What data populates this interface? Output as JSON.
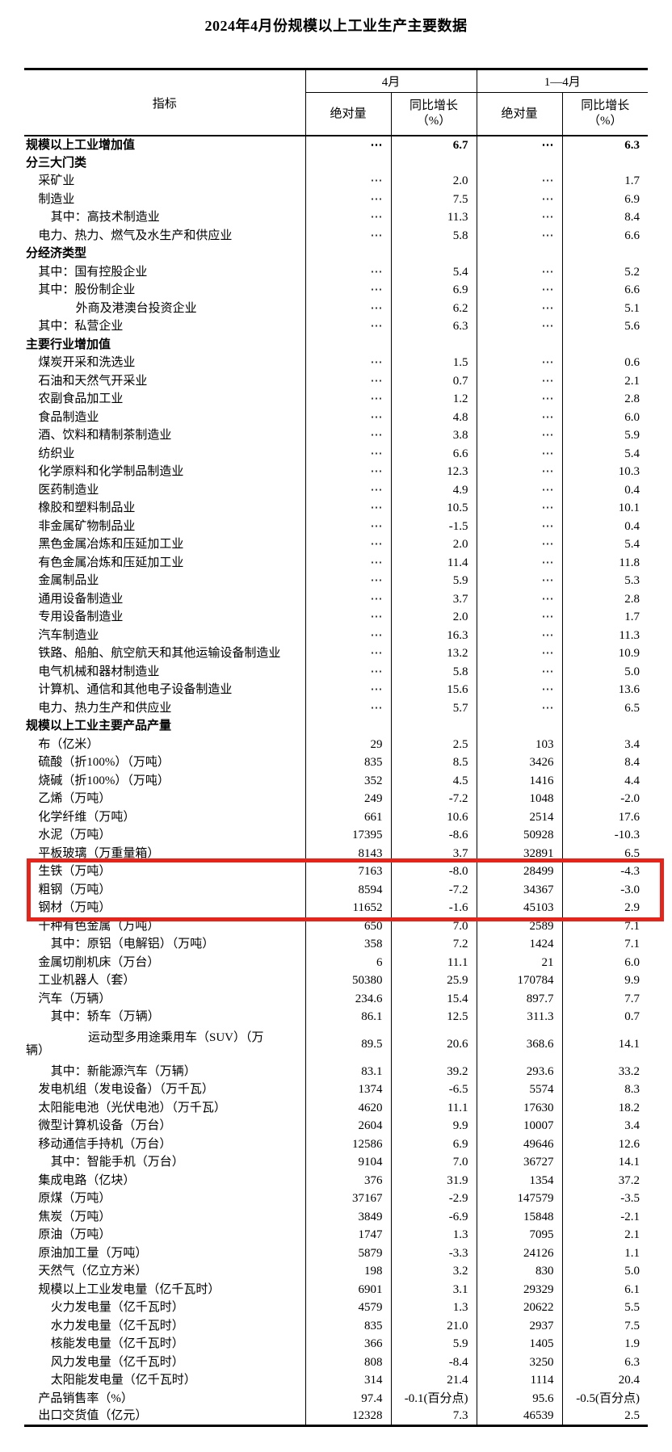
{
  "title": "2024年4月份规模以上工业生产主要数据",
  "table": {
    "highlight_color": "#e82319",
    "header": {
      "indicator": "指标",
      "groups": [
        {
          "label": "4月"
        },
        {
          "label": "1—4月"
        }
      ],
      "subheaders": [
        {
          "line1": "绝对量",
          "line2": ""
        },
        {
          "line1": "同比增长",
          "line2": "（%）"
        },
        {
          "line1": "绝对量",
          "line2": ""
        },
        {
          "line1": "同比增长",
          "line2": "（%）"
        }
      ]
    },
    "rows": [
      {
        "label": "规模以上工业增加值",
        "indent": 0,
        "bold": true,
        "values": [
          "⋯",
          "6.7",
          "⋯",
          "6.3"
        ]
      },
      {
        "label": "分三大门类",
        "indent": 0,
        "bold": true,
        "values": [
          "",
          "",
          "",
          ""
        ]
      },
      {
        "label": "采矿业",
        "indent": 1,
        "values": [
          "⋯",
          "2.0",
          "⋯",
          "1.7"
        ]
      },
      {
        "label": "制造业",
        "indent": 1,
        "values": [
          "⋯",
          "7.5",
          "⋯",
          "6.9"
        ]
      },
      {
        "label": "其中：高技术制造业",
        "indent": 2,
        "values": [
          "⋯",
          "11.3",
          "⋯",
          "8.4"
        ]
      },
      {
        "label": "电力、热力、燃气及水生产和供应业",
        "indent": 1,
        "values": [
          "⋯",
          "5.8",
          "⋯",
          "6.6"
        ]
      },
      {
        "label": "分经济类型",
        "indent": 0,
        "bold": true,
        "values": [
          "",
          "",
          "",
          ""
        ]
      },
      {
        "label": "其中：国有控股企业",
        "indent": 1,
        "values": [
          "⋯",
          "5.4",
          "⋯",
          "5.2"
        ]
      },
      {
        "label": "其中：股份制企业",
        "indent": 1,
        "values": [
          "⋯",
          "6.9",
          "⋯",
          "6.6"
        ]
      },
      {
        "label": "外商及港澳台投资企业",
        "indent": 4,
        "values": [
          "⋯",
          "6.2",
          "⋯",
          "5.1"
        ]
      },
      {
        "label": "其中：私营企业",
        "indent": 1,
        "values": [
          "⋯",
          "6.3",
          "⋯",
          "5.6"
        ]
      },
      {
        "label": "主要行业增加值",
        "indent": 0,
        "bold": true,
        "values": [
          "",
          "",
          "",
          ""
        ]
      },
      {
        "label": "煤炭开采和洗选业",
        "indent": 1,
        "values": [
          "⋯",
          "1.5",
          "⋯",
          "0.6"
        ]
      },
      {
        "label": "石油和天然气开采业",
        "indent": 1,
        "values": [
          "⋯",
          "0.7",
          "⋯",
          "2.1"
        ]
      },
      {
        "label": "农副食品加工业",
        "indent": 1,
        "values": [
          "⋯",
          "1.2",
          "⋯",
          "2.8"
        ]
      },
      {
        "label": "食品制造业",
        "indent": 1,
        "values": [
          "⋯",
          "4.8",
          "⋯",
          "6.0"
        ]
      },
      {
        "label": "酒、饮料和精制茶制造业",
        "indent": 1,
        "values": [
          "⋯",
          "3.8",
          "⋯",
          "5.9"
        ]
      },
      {
        "label": "纺织业",
        "indent": 1,
        "values": [
          "⋯",
          "6.6",
          "⋯",
          "5.4"
        ]
      },
      {
        "label": "化学原料和化学制品制造业",
        "indent": 1,
        "values": [
          "⋯",
          "12.3",
          "⋯",
          "10.3"
        ]
      },
      {
        "label": "医药制造业",
        "indent": 1,
        "values": [
          "⋯",
          "4.9",
          "⋯",
          "0.4"
        ]
      },
      {
        "label": "橡胶和塑料制品业",
        "indent": 1,
        "values": [
          "⋯",
          "10.5",
          "⋯",
          "10.1"
        ]
      },
      {
        "label": "非金属矿物制品业",
        "indent": 1,
        "values": [
          "⋯",
          "-1.5",
          "⋯",
          "0.4"
        ]
      },
      {
        "label": "黑色金属冶炼和压延加工业",
        "indent": 1,
        "values": [
          "⋯",
          "2.0",
          "⋯",
          "5.4"
        ]
      },
      {
        "label": "有色金属冶炼和压延加工业",
        "indent": 1,
        "values": [
          "⋯",
          "11.4",
          "⋯",
          "11.8"
        ]
      },
      {
        "label": "金属制品业",
        "indent": 1,
        "values": [
          "⋯",
          "5.9",
          "⋯",
          "5.3"
        ]
      },
      {
        "label": "通用设备制造业",
        "indent": 1,
        "values": [
          "⋯",
          "3.7",
          "⋯",
          "2.8"
        ]
      },
      {
        "label": "专用设备制造业",
        "indent": 1,
        "values": [
          "⋯",
          "2.0",
          "⋯",
          "1.7"
        ]
      },
      {
        "label": "汽车制造业",
        "indent": 1,
        "values": [
          "⋯",
          "16.3",
          "⋯",
          "11.3"
        ]
      },
      {
        "label": "铁路、船舶、航空航天和其他运输设备制造业",
        "indent": 1,
        "values": [
          "⋯",
          "13.2",
          "⋯",
          "10.9"
        ]
      },
      {
        "label": "电气机械和器材制造业",
        "indent": 1,
        "values": [
          "⋯",
          "5.8",
          "⋯",
          "5.0"
        ]
      },
      {
        "label": "计算机、通信和其他电子设备制造业",
        "indent": 1,
        "values": [
          "⋯",
          "15.6",
          "⋯",
          "13.6"
        ]
      },
      {
        "label": "电力、热力生产和供应业",
        "indent": 1,
        "values": [
          "⋯",
          "5.7",
          "⋯",
          "6.5"
        ]
      },
      {
        "label": "规模以上工业主要产品产量",
        "indent": 0,
        "bold": true,
        "values": [
          "",
          "",
          "",
          ""
        ]
      },
      {
        "label": "布（亿米）",
        "indent": 1,
        "values": [
          "29",
          "2.5",
          "103",
          "3.4"
        ]
      },
      {
        "label": "硫酸（折100%）（万吨）",
        "indent": 1,
        "values": [
          "835",
          "8.5",
          "3426",
          "8.4"
        ]
      },
      {
        "label": "烧碱（折100%）（万吨）",
        "indent": 1,
        "values": [
          "352",
          "4.5",
          "1416",
          "4.4"
        ]
      },
      {
        "label": "乙烯（万吨）",
        "indent": 1,
        "values": [
          "249",
          "-7.2",
          "1048",
          "-2.0"
        ]
      },
      {
        "label": "化学纤维（万吨）",
        "indent": 1,
        "values": [
          "661",
          "10.6",
          "2514",
          "17.6"
        ]
      },
      {
        "label": "水泥（万吨）",
        "indent": 1,
        "values": [
          "17395",
          "-8.6",
          "50928",
          "-10.3"
        ]
      },
      {
        "label": "平板玻璃（万重量箱）",
        "indent": 1,
        "values": [
          "8143",
          "3.7",
          "32891",
          "6.5"
        ]
      },
      {
        "label": "生铁（万吨）",
        "indent": 1,
        "highlight": true,
        "values": [
          "7163",
          "-8.0",
          "28499",
          "-4.3"
        ]
      },
      {
        "label": "粗钢（万吨）",
        "indent": 1,
        "highlight": true,
        "values": [
          "8594",
          "-7.2",
          "34367",
          "-3.0"
        ]
      },
      {
        "label": "钢材（万吨）",
        "indent": 1,
        "highlight": true,
        "values": [
          "11652",
          "-1.6",
          "45103",
          "2.9"
        ]
      },
      {
        "label": "十种有色金属（万吨）",
        "indent": 1,
        "values": [
          "650",
          "7.0",
          "2589",
          "7.1"
        ]
      },
      {
        "label": "其中：原铝（电解铝）（万吨）",
        "indent": 2,
        "values": [
          "358",
          "7.2",
          "1424",
          "7.1"
        ]
      },
      {
        "label": "金属切削机床（万台）",
        "indent": 1,
        "values": [
          "6",
          "11.1",
          "21",
          "6.0"
        ]
      },
      {
        "label": "工业机器人（套）",
        "indent": 1,
        "values": [
          "50380",
          "25.9",
          "170784",
          "9.9"
        ]
      },
      {
        "label": "汽车（万辆）",
        "indent": 1,
        "values": [
          "234.6",
          "15.4",
          "897.7",
          "7.7"
        ]
      },
      {
        "label": "其中：轿车（万辆）",
        "indent": 2,
        "values": [
          "86.1",
          "12.5",
          "311.3",
          "0.7"
        ]
      },
      {
        "label_lines": [
          "运动型多用途乘用车（SUV）（万",
          "辆）"
        ],
        "indent": 5,
        "values": [
          "89.5",
          "20.6",
          "368.6",
          "14.1"
        ]
      },
      {
        "label": "其中：新能源汽车（万辆）",
        "indent": 2,
        "values": [
          "83.1",
          "39.2",
          "293.6",
          "33.2"
        ]
      },
      {
        "label": "发电机组（发电设备）（万千瓦）",
        "indent": 1,
        "values": [
          "1374",
          "-6.5",
          "5574",
          "8.3"
        ]
      },
      {
        "label": "太阳能电池（光伏电池）（万千瓦）",
        "indent": 1,
        "values": [
          "4620",
          "11.1",
          "17630",
          "18.2"
        ]
      },
      {
        "label": "微型计算机设备（万台）",
        "indent": 1,
        "values": [
          "2604",
          "9.9",
          "10007",
          "3.4"
        ]
      },
      {
        "label": "移动通信手持机（万台）",
        "indent": 1,
        "values": [
          "12586",
          "6.9",
          "49646",
          "12.6"
        ]
      },
      {
        "label": "其中：智能手机（万台）",
        "indent": 2,
        "values": [
          "9104",
          "7.0",
          "36727",
          "14.1"
        ]
      },
      {
        "label": "集成电路（亿块）",
        "indent": 1,
        "values": [
          "376",
          "31.9",
          "1354",
          "37.2"
        ]
      },
      {
        "label": "原煤（万吨）",
        "indent": 1,
        "values": [
          "37167",
          "-2.9",
          "147579",
          "-3.5"
        ]
      },
      {
        "label": "焦炭（万吨）",
        "indent": 1,
        "values": [
          "3849",
          "-6.9",
          "15848",
          "-2.1"
        ]
      },
      {
        "label": "原油（万吨）",
        "indent": 1,
        "values": [
          "1747",
          "1.3",
          "7095",
          "2.1"
        ]
      },
      {
        "label": "原油加工量（万吨）",
        "indent": 1,
        "values": [
          "5879",
          "-3.3",
          "24126",
          "1.1"
        ]
      },
      {
        "label": "天然气（亿立方米）",
        "indent": 1,
        "values": [
          "198",
          "3.2",
          "830",
          "5.0"
        ]
      },
      {
        "label": "规模以上工业发电量（亿千瓦时）",
        "indent": 1,
        "values": [
          "6901",
          "3.1",
          "29329",
          "6.1"
        ]
      },
      {
        "label": "火力发电量（亿千瓦时）",
        "indent": 2,
        "values": [
          "4579",
          "1.3",
          "20622",
          "5.5"
        ]
      },
      {
        "label": "水力发电量（亿千瓦时）",
        "indent": 2,
        "values": [
          "835",
          "21.0",
          "2937",
          "7.5"
        ]
      },
      {
        "label": "核能发电量（亿千瓦时）",
        "indent": 2,
        "values": [
          "366",
          "5.9",
          "1405",
          "1.9"
        ]
      },
      {
        "label": "风力发电量（亿千瓦时）",
        "indent": 2,
        "values": [
          "808",
          "-8.4",
          "3250",
          "6.3"
        ]
      },
      {
        "label": "太阳能发电量（亿千瓦时）",
        "indent": 2,
        "values": [
          "314",
          "21.4",
          "1114",
          "20.4"
        ]
      },
      {
        "label": "产品销售率（%）",
        "indent": 1,
        "values": [
          "97.4",
          "-0.1(百分点)",
          "95.6",
          "-0.5(百分点)"
        ]
      },
      {
        "label": "出口交货值（亿元）",
        "indent": 1,
        "values": [
          "12328",
          "7.3",
          "46539",
          "2.5"
        ]
      }
    ]
  }
}
